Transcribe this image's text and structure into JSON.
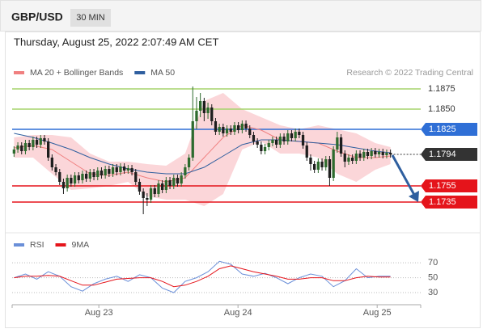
{
  "chart_data": {
    "type": "candlestick",
    "title": "GBP/USD",
    "timeframe": "30 MIN",
    "subtitle": "Thursday, August 25, 2022 2:07:49 AM CET",
    "credit": "Research © 2022 Trading Central",
    "xlim": [
      -0.5,
      99.5
    ],
    "xticks": [
      {
        "value": 22.3,
        "label": "Aug 23"
      },
      {
        "value": 58.9,
        "label": "Aug 24"
      },
      {
        "value": 95.5,
        "label": "Aug 25"
      }
    ],
    "ylim": [
      1.1697,
      1.1908
    ],
    "up_color": "#2e6b2e",
    "down_color": "#1e1e1e",
    "open": [
      1.1795,
      1.18,
      1.1805,
      1.1798,
      1.1808,
      1.1803,
      1.1812,
      1.1806,
      1.1814,
      1.181,
      1.179,
      1.1778,
      1.1772,
      1.176,
      1.1752,
      1.1765,
      1.1758,
      1.1768,
      1.1762,
      1.177,
      1.1764,
      1.1772,
      1.1766,
      1.1774,
      1.1768,
      1.1776,
      1.177,
      1.1778,
      1.1772,
      1.1779,
      1.1774,
      1.1777,
      1.1772,
      1.176,
      1.1748,
      1.174,
      1.1738,
      1.1752,
      1.1745,
      1.1758,
      1.175,
      1.1762,
      1.1755,
      1.1765,
      1.1758,
      1.1768,
      1.1778,
      1.179,
      1.1835,
      1.1848,
      1.186,
      1.1845,
      1.1852,
      1.1835,
      1.1822,
      1.1828,
      1.182,
      1.1826,
      1.1822,
      1.183,
      1.1824,
      1.1832,
      1.1826,
      1.1818,
      1.181,
      1.1806,
      1.1798,
      1.1803,
      1.1808,
      1.1812,
      1.1806,
      1.1816,
      1.181,
      1.182,
      1.1814,
      1.1822,
      1.1818,
      1.1805,
      1.179,
      1.1782,
      1.1775,
      1.1785,
      1.1778,
      1.1788,
      1.1765,
      1.18,
      1.1815,
      1.1795,
      1.1785,
      1.179,
      1.1786,
      1.1795,
      1.179,
      1.1797,
      1.1792,
      1.1798,
      1.1794,
      1.1797,
      1.1793,
      1.1796
    ],
    "high": [
      1.1804,
      1.1809,
      1.1809,
      1.1812,
      1.1812,
      1.1816,
      1.1816,
      1.1818,
      1.1818,
      1.1814,
      1.1794,
      1.1782,
      1.1776,
      1.1764,
      1.1769,
      1.1769,
      1.1772,
      1.1772,
      1.1774,
      1.1774,
      1.1776,
      1.1776,
      1.1778,
      1.1778,
      1.178,
      1.178,
      1.1782,
      1.1782,
      1.1783,
      1.1783,
      1.1781,
      1.1781,
      1.1776,
      1.1764,
      1.1752,
      1.1746,
      1.1756,
      1.1756,
      1.1762,
      1.1762,
      1.1766,
      1.1766,
      1.1769,
      1.1769,
      1.1772,
      1.1782,
      1.1794,
      1.1878,
      1.1865,
      1.187,
      1.1864,
      1.1858,
      1.1856,
      1.1839,
      1.1832,
      1.1832,
      1.183,
      1.183,
      1.1834,
      1.1834,
      1.1836,
      1.1836,
      1.183,
      1.1822,
      1.1814,
      1.181,
      1.1807,
      1.1812,
      1.1816,
      1.1816,
      1.182,
      1.182,
      1.1824,
      1.1824,
      1.1826,
      1.1826,
      1.1822,
      1.1809,
      1.1794,
      1.1786,
      1.1789,
      1.1789,
      1.1792,
      1.1792,
      1.1804,
      1.1822,
      1.1819,
      1.1799,
      1.1794,
      1.1794,
      1.1799,
      1.1799,
      1.1801,
      1.1801,
      1.1802,
      1.1802,
      1.1801,
      1.1801,
      1.18,
      1.18
    ],
    "low": [
      1.1791,
      1.1796,
      1.1794,
      1.1794,
      1.1799,
      1.1799,
      1.1802,
      1.1802,
      1.1806,
      1.1786,
      1.1774,
      1.1768,
      1.1756,
      1.1745,
      1.1748,
      1.1754,
      1.1754,
      1.1758,
      1.1758,
      1.176,
      1.176,
      1.1762,
      1.1762,
      1.1764,
      1.1764,
      1.1766,
      1.1766,
      1.1768,
      1.1768,
      1.177,
      1.177,
      1.1768,
      1.1756,
      1.1744,
      1.172,
      1.173,
      1.1734,
      1.1741,
      1.1741,
      1.1746,
      1.1746,
      1.1751,
      1.1751,
      1.1754,
      1.1754,
      1.1764,
      1.1774,
      1.1786,
      1.1825,
      1.184,
      1.1835,
      1.1838,
      1.183,
      1.1818,
      1.1818,
      1.1816,
      1.1816,
      1.1818,
      1.1818,
      1.182,
      1.182,
      1.1822,
      1.1814,
      1.1806,
      1.1802,
      1.1794,
      1.1794,
      1.1799,
      1.1804,
      1.1802,
      1.1802,
      1.1806,
      1.1806,
      1.181,
      1.181,
      1.1814,
      1.1801,
      1.1786,
      1.1774,
      1.1771,
      1.1771,
      1.1774,
      1.1774,
      1.1755,
      1.1761,
      1.1796,
      1.1791,
      1.1778,
      1.1781,
      1.1782,
      1.1782,
      1.1786,
      1.1786,
      1.1788,
      1.1788,
      1.179,
      1.179,
      1.1789,
      1.1789,
      1.179
    ],
    "close": [
      1.18,
      1.1805,
      1.1798,
      1.1808,
      1.1803,
      1.1812,
      1.1806,
      1.1814,
      1.181,
      1.179,
      1.1778,
      1.1772,
      1.176,
      1.1752,
      1.1765,
      1.1758,
      1.1768,
      1.1762,
      1.177,
      1.1764,
      1.1772,
      1.1766,
      1.1774,
      1.1768,
      1.1776,
      1.177,
      1.1778,
      1.1772,
      1.1779,
      1.1774,
      1.1777,
      1.1772,
      1.176,
      1.1748,
      1.174,
      1.1738,
      1.1752,
      1.1745,
      1.1758,
      1.175,
      1.1762,
      1.1755,
      1.1765,
      1.1758,
      1.1768,
      1.1778,
      1.179,
      1.1835,
      1.1848,
      1.186,
      1.1845,
      1.1852,
      1.1835,
      1.1822,
      1.1828,
      1.182,
      1.1826,
      1.1822,
      1.183,
      1.1824,
      1.1832,
      1.1826,
      1.1818,
      1.181,
      1.1806,
      1.1798,
      1.1803,
      1.1808,
      1.1812,
      1.1806,
      1.1816,
      1.181,
      1.182,
      1.1814,
      1.1822,
      1.1818,
      1.1805,
      1.179,
      1.1782,
      1.1775,
      1.1785,
      1.1778,
      1.1788,
      1.1765,
      1.18,
      1.1815,
      1.1795,
      1.1785,
      1.179,
      1.1786,
      1.1795,
      1.179,
      1.1797,
      1.1792,
      1.1798,
      1.1794,
      1.1797,
      1.1793,
      1.1796,
      1.1794
    ],
    "series": [
      {
        "name": "MA 20 + Bollinger Bands",
        "color": "#f08080",
        "band_color": "#fbd6d9",
        "x": [
          0,
          5,
          10,
          15,
          20,
          25,
          30,
          35,
          40,
          45,
          50,
          55,
          60,
          65,
          70,
          75,
          80,
          85,
          90,
          95,
          99
        ],
        "values": [
          1.1802,
          1.1805,
          1.18,
          1.1785,
          1.177,
          1.1768,
          1.1772,
          1.1765,
          1.176,
          1.1765,
          1.179,
          1.1815,
          1.183,
          1.1824,
          1.1812,
          1.181,
          1.1808,
          1.1798,
          1.179,
          1.179,
          1.1792
        ],
        "band_upper": [
          1.1815,
          1.1818,
          1.1818,
          1.1815,
          1.1795,
          1.1785,
          1.1785,
          1.1782,
          1.178,
          1.1795,
          1.186,
          1.187,
          1.185,
          1.184,
          1.183,
          1.1825,
          1.183,
          1.1825,
          1.182,
          1.1808,
          1.1803
        ],
        "band_lower": [
          1.179,
          1.179,
          1.177,
          1.175,
          1.1752,
          1.1755,
          1.176,
          1.1742,
          1.1738,
          1.1738,
          1.173,
          1.1745,
          1.18,
          1.181,
          1.1795,
          1.1795,
          1.179,
          1.177,
          1.176,
          1.1775,
          1.1782
        ]
      },
      {
        "name": "MA 50",
        "color": "#2f5f9f",
        "x": [
          0,
          5,
          10,
          15,
          20,
          25,
          30,
          35,
          40,
          45,
          50,
          55,
          60,
          65,
          70,
          75,
          80,
          85,
          90,
          95,
          99
        ],
        "values": [
          1.182,
          1.1815,
          1.1808,
          1.18,
          1.179,
          1.1782,
          1.1776,
          1.1772,
          1.177,
          1.177,
          1.1778,
          1.1792,
          1.1806,
          1.1812,
          1.1812,
          1.181,
          1.1808,
          1.1806,
          1.1802,
          1.1798,
          1.1796
        ]
      }
    ],
    "levels": [
      {
        "value": 1.1875,
        "label": "1.1875",
        "color": "#a5d36b",
        "style": "plain"
      },
      {
        "value": 1.185,
        "label": "1.1850",
        "color": "#a5d36b",
        "style": "plain"
      },
      {
        "value": 1.1825,
        "label": "1.1825",
        "color": "#2f6fd6",
        "style": "box"
      },
      {
        "value": 1.1794,
        "label": "1.1794",
        "color": "#333333",
        "style": "last"
      },
      {
        "value": 1.1755,
        "label": "1.1755",
        "color": "#e5141b",
        "style": "box"
      },
      {
        "value": 1.1735,
        "label": "1.1735",
        "color": "#e5141b",
        "style": "box"
      }
    ],
    "rsi": {
      "ylim": [
        17,
        106
      ],
      "yticks": [
        70,
        50,
        30
      ],
      "series": [
        {
          "name": "RSI",
          "color": "#6a8fd8",
          "x": [
            0,
            3,
            6,
            9,
            12,
            15,
            18,
            21,
            24,
            27,
            30,
            33,
            36,
            39,
            42,
            45,
            48,
            51,
            54,
            57,
            60,
            63,
            66,
            69,
            72,
            75,
            78,
            81,
            84,
            87,
            90,
            93,
            96,
            99
          ],
          "values": [
            50,
            55,
            48,
            58,
            52,
            38,
            32,
            42,
            48,
            52,
            45,
            54,
            50,
            36,
            30,
            45,
            50,
            58,
            72,
            68,
            55,
            52,
            56,
            50,
            42,
            50,
            55,
            52,
            38,
            46,
            62,
            50,
            52,
            52
          ]
        },
        {
          "name": "9MA",
          "color": "#e5141b",
          "x": [
            0,
            3,
            6,
            9,
            12,
            15,
            18,
            21,
            24,
            27,
            30,
            33,
            36,
            39,
            42,
            45,
            48,
            51,
            54,
            57,
            60,
            63,
            66,
            69,
            72,
            75,
            78,
            81,
            84,
            87,
            90,
            93,
            96,
            99
          ],
          "values": [
            50,
            52,
            52,
            53,
            52,
            46,
            40,
            40,
            44,
            48,
            49,
            50,
            50,
            45,
            38,
            40,
            45,
            52,
            62,
            66,
            62,
            58,
            55,
            52,
            48,
            48,
            50,
            50,
            46,
            46,
            50,
            52,
            51,
            51
          ]
        }
      ]
    }
  }
}
